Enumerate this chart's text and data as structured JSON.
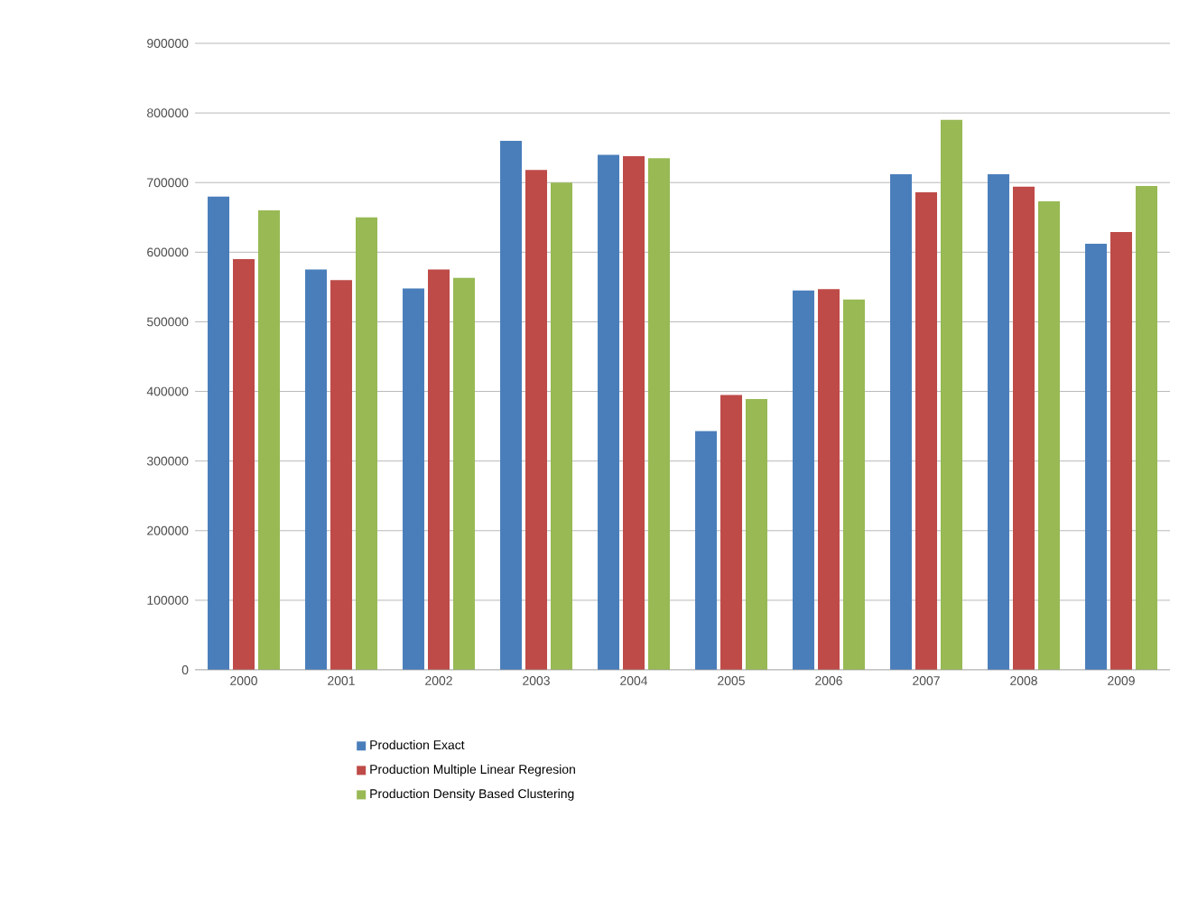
{
  "chart_data": {
    "type": "bar",
    "categories": [
      "2000",
      "2001",
      "2002",
      "2003",
      "2004",
      "2005",
      "2006",
      "2007",
      "2008",
      "2009"
    ],
    "series": [
      {
        "name": "Production Exact",
        "color": "#4a7ebb",
        "values": [
          680000,
          575000,
          548000,
          760000,
          740000,
          343000,
          545000,
          712000,
          712000,
          612000
        ]
      },
      {
        "name": "Production Multiple Linear Regresion",
        "color": "#be4b48",
        "values": [
          590000,
          560000,
          575000,
          718000,
          738000,
          395000,
          547000,
          686000,
          694000,
          629000
        ]
      },
      {
        "name": "Production Density Based Clustering",
        "color": "#98b954",
        "values": [
          660000,
          650000,
          563000,
          700000,
          735000,
          389000,
          532000,
          790000,
          673000,
          695000
        ]
      }
    ],
    "ylim": [
      0,
      900000
    ],
    "yticks": [
      0,
      100000,
      200000,
      300000,
      400000,
      500000,
      600000,
      700000,
      800000,
      900000
    ],
    "grid": "y",
    "legend": "bottom"
  }
}
